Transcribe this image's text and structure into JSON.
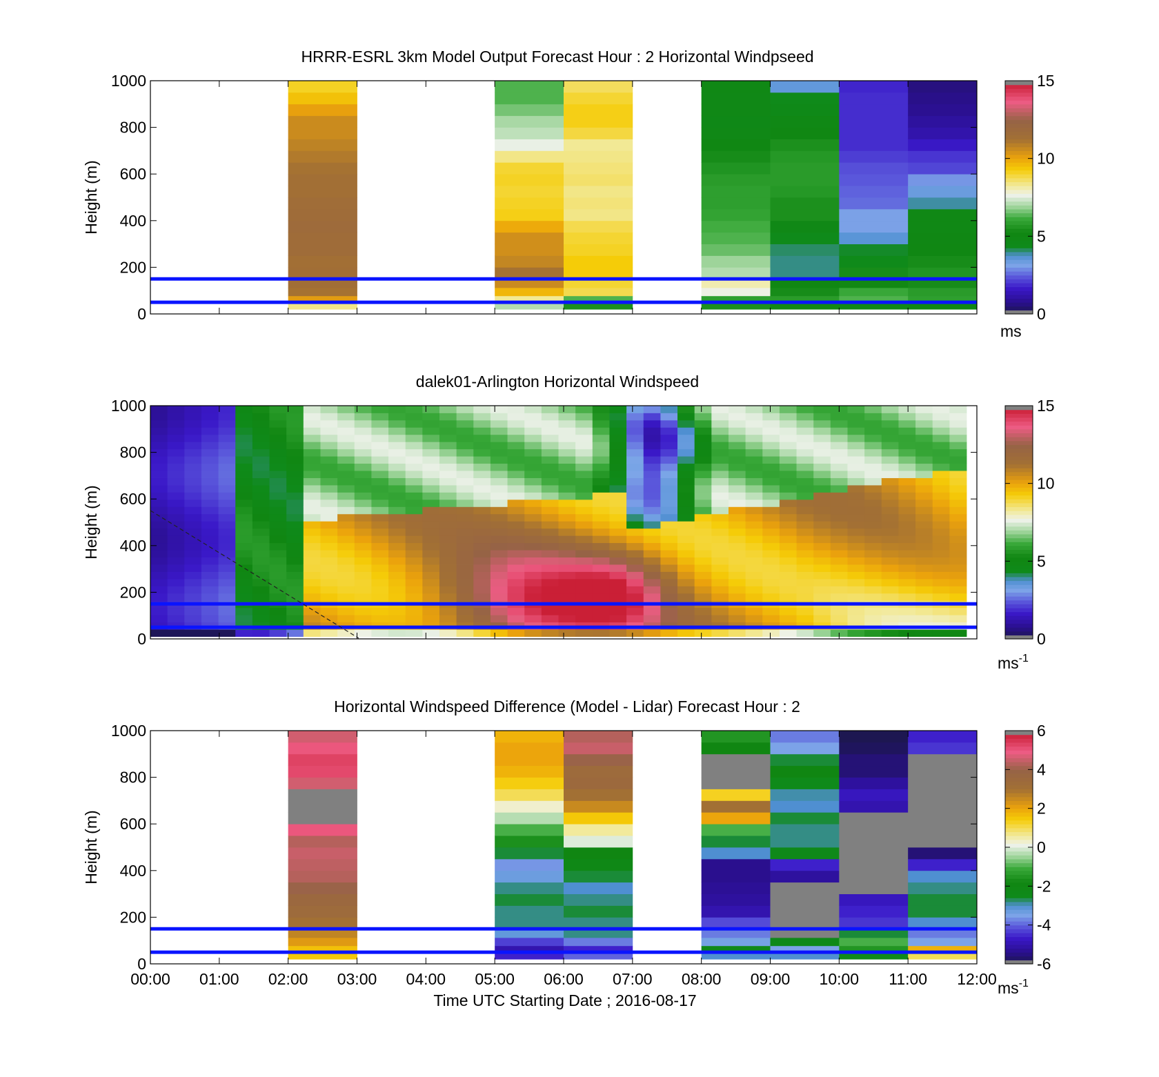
{
  "figure": {
    "xlabel": "Time UTC  Starting Date ; 2016-08-17",
    "x_ticks": [
      "00:00",
      "01:00",
      "02:00",
      "03:00",
      "04:00",
      "05:00",
      "06:00",
      "07:00",
      "08:00",
      "09:00",
      "10:00",
      "11:00",
      "12:00"
    ]
  },
  "chart_data": [
    {
      "type": "heatmap",
      "title": "HRRR-ESRL 3km Model Output   Forecast Hour : 2 Horizontal Windpseed",
      "ylabel": "Height (m)",
      "xlim": [
        0,
        12
      ],
      "ylim": [
        0,
        1000
      ],
      "y_ticks": [
        "0",
        "200",
        "400",
        "600",
        "800",
        "1000"
      ],
      "colorbar": {
        "min": 0,
        "max": 15,
        "ticks": [
          "0",
          "5",
          "10",
          "15"
        ],
        "unit": "ms",
        "unit_sup": ""
      },
      "reference_lines_m": [
        50,
        150
      ],
      "x_hours": [
        2,
        5,
        6,
        8,
        9,
        10,
        11
      ],
      "z_levels_m": [
        30,
        60,
        95,
        130,
        175,
        225,
        275,
        325,
        375,
        425,
        475,
        525,
        575,
        625,
        675,
        725,
        775,
        825,
        875,
        925,
        975
      ],
      "values": [
        [
          8.4,
          10.2,
          11.2,
          11.4,
          11.4,
          11.3,
          11.6,
          11.6,
          11.7,
          11.6,
          11.5,
          11.3,
          11.3,
          11.2,
          11.0,
          10.8,
          10.6,
          10.6,
          10.1,
          9.5,
          9.1
        ],
        [
          7.1,
          8.3,
          9.7,
          10.6,
          11.2,
          10.7,
          10.5,
          10.5,
          9.9,
          9.2,
          9.1,
          9.0,
          9.1,
          9.0,
          8.4,
          7.6,
          7.2,
          7.0,
          6.6,
          6.3,
          6.3
        ],
        [
          5.5,
          6.3,
          8.8,
          9.0,
          9.3,
          9.3,
          9.1,
          9.0,
          8.8,
          8.4,
          8.5,
          8.4,
          8.6,
          8.5,
          8.4,
          8.3,
          8.9,
          9.2,
          9.2,
          9.0,
          8.7
        ],
        [
          5.5,
          5.9,
          7.7,
          8.1,
          7.1,
          6.9,
          6.5,
          6.3,
          6.2,
          6.0,
          5.9,
          5.9,
          5.8,
          5.6,
          5.4,
          5.1,
          4.8,
          4.7,
          4.8,
          4.8,
          4.9
        ],
        [
          5.3,
          5.8,
          5.4,
          5.1,
          4.0,
          4.0,
          4.1,
          4.4,
          4.8,
          5.5,
          5.5,
          5.7,
          5.8,
          5.8,
          5.7,
          5.5,
          5.1,
          4.9,
          4.6,
          4.4,
          3.5
        ],
        [
          4.8,
          6.3,
          6.1,
          5.3,
          5.4,
          4.4,
          4.3,
          3.6,
          3.1,
          3.1,
          2.6,
          2.5,
          2.4,
          2.3,
          2.1,
          1.9,
          1.9,
          1.9,
          1.9,
          1.9,
          1.8
        ],
        [
          5.0,
          5.9,
          5.8,
          5.4,
          5.6,
          5.4,
          5.1,
          5.0,
          4.9,
          4.9,
          3.9,
          3.4,
          3.0,
          2.2,
          2.0,
          1.6,
          1.2,
          1.0,
          0.8,
          0.7,
          0.6
        ]
      ]
    },
    {
      "type": "heatmap",
      "title": "dalek01-Arlington  Horizontal Windspeed",
      "ylabel": "Height (m)",
      "xlim": [
        0,
        12
      ],
      "ylim": [
        0,
        1000
      ],
      "y_ticks": [
        "0",
        "200",
        "400",
        "600",
        "800",
        "1000"
      ],
      "colorbar": {
        "min": 0,
        "max": 15,
        "ticks": [
          "0",
          "5",
          "10",
          "15"
        ],
        "unit": "ms",
        "unit_sup": "-1"
      },
      "reference_lines_m": [
        50,
        150
      ],
      "x_range_hours": [
        0,
        11.85
      ],
      "z_range_m": [
        10,
        1000
      ],
      "field": "Lidar windspeed: weak (0-3 ms-1) 00:00-01:30, 5-7 ms-1 around 01:30, jet maximum 13-15 ms-1 below 350 m between 04:00 and 07:00, 8-11 ms-1 layer below 600 m after 07:00, 1-3 ms-1 aloft between 06:45 and 08:00"
    },
    {
      "type": "heatmap",
      "title": "Horizontal Windspeed Difference (Model - Lidar) Forecast Hour : 2",
      "ylabel": "Height (m)",
      "xlim": [
        0,
        12
      ],
      "ylim": [
        0,
        1000
      ],
      "y_ticks": [
        "0",
        "200",
        "400",
        "600",
        "800",
        "1000"
      ],
      "colorbar": {
        "min": -6,
        "max": 6,
        "ticks": [
          "-6",
          "-4",
          "-2",
          "0",
          "2",
          "4",
          "6"
        ],
        "unit": "ms",
        "unit_sup": "-1"
      },
      "reference_lines_m": [
        50,
        150
      ],
      "x_hours": [
        2,
        5,
        6,
        8,
        9,
        10,
        11
      ],
      "z_levels_m": [
        30,
        60,
        95,
        130,
        175,
        225,
        275,
        325,
        375,
        425,
        475,
        525,
        575,
        625,
        675,
        725,
        775,
        825,
        875,
        925,
        975
      ],
      "values": [
        [
          1.5,
          1.6,
          2.2,
          2.6,
          3.0,
          3.4,
          3.6,
          4.0,
          4.3,
          4.4,
          4.5,
          4.3,
          5.0,
          null,
          null,
          null,
          4.6,
          5.2,
          5.3,
          5.0,
          4.6
        ],
        [
          -4.6,
          -5.0,
          -4.3,
          -3.2,
          -2.8,
          -2.8,
          -2.6,
          -2.8,
          -3.3,
          -3.6,
          -2.6,
          -1.6,
          -1.0,
          -0.3,
          0.3,
          1.0,
          1.4,
          1.8,
          2.0,
          2.0,
          1.8
        ],
        [
          -4.0,
          -4.6,
          -3.8,
          -2.8,
          -2.8,
          -2.6,
          -2.8,
          -3.0,
          -2.6,
          -2.2,
          -1.8,
          0.0,
          0.6,
          1.5,
          2.5,
          3.0,
          3.5,
          3.4,
          4.0,
          4.5,
          4.3
        ],
        [
          -3.0,
          -2.4,
          -3.4,
          -3.8,
          -4.2,
          -5.0,
          -5.2,
          -5.3,
          -5.4,
          -5.4,
          -3.0,
          -2.6,
          -1.0,
          2.0,
          3.0,
          1.3,
          null,
          null,
          null,
          -1.8,
          -1.5
        ],
        [
          -3.0,
          -3.5,
          -2.4,
          null,
          null,
          null,
          null,
          null,
          -5.2,
          -4.6,
          -2.4,
          -2.8,
          -2.8,
          -2.6,
          -3.0,
          -2.9,
          -2.5,
          -1.8,
          -2.6,
          -3.5,
          -3.8
        ],
        [
          -2.4,
          -1.5,
          -1.0,
          -2.6,
          -4.4,
          -4.6,
          -4.8,
          null,
          null,
          null,
          null,
          null,
          null,
          null,
          -5.0,
          -4.8,
          -5.2,
          -5.6,
          -5.6,
          -5.8,
          -5.9
        ],
        [
          1.0,
          1.8,
          -3.5,
          -3.8,
          -3.0,
          -2.6,
          -2.6,
          -2.8,
          -3.0,
          -4.6,
          -5.6,
          null,
          null,
          null,
          null,
          null,
          null,
          null,
          null,
          -4.4,
          -4.6
        ]
      ]
    }
  ],
  "colors": {
    "reference_line": "#0a14ff",
    "nan_gray": "#808080",
    "colormap": [
      [
        0,
        "#1a1845"
      ],
      [
        0.05,
        "#2a0f8e"
      ],
      [
        0.11,
        "#3a18c8"
      ],
      [
        0.16,
        "#5a57db"
      ],
      [
        0.21,
        "#7da6e8"
      ],
      [
        0.25,
        "#4f8fd1"
      ],
      [
        0.29,
        "#0f8a1a"
      ],
      [
        0.35,
        "#108612"
      ],
      [
        0.41,
        "#3aa93a"
      ],
      [
        0.46,
        "#9ed49a"
      ],
      [
        0.51,
        "#eef2ea"
      ],
      [
        0.55,
        "#f2ea9c"
      ],
      [
        0.62,
        "#f5cc08"
      ],
      [
        0.67,
        "#eba20c"
      ],
      [
        0.75,
        "#a27034"
      ],
      [
        0.83,
        "#966346"
      ],
      [
        0.91,
        "#ee5c84"
      ],
      [
        1,
        "#c41429"
      ]
    ]
  }
}
